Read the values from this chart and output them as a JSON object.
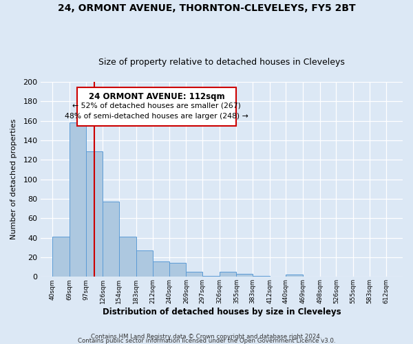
{
  "title_line1": "24, ORMONT AVENUE, THORNTON-CLEVELEYS, FY5 2BT",
  "title_line2": "Size of property relative to detached houses in Cleveleys",
  "xlabel": "Distribution of detached houses by size in Cleveleys",
  "ylabel": "Number of detached properties",
  "bar_values": [
    41,
    158,
    129,
    77,
    41,
    27,
    16,
    14,
    5,
    1,
    5,
    3,
    1,
    0,
    2
  ],
  "tick_values": [
    40,
    69,
    97,
    126,
    154,
    183,
    212,
    240,
    269,
    297,
    326,
    355,
    383,
    412,
    440,
    469,
    498,
    526,
    555,
    583,
    612
  ],
  "bar_color": "#adc8e0",
  "bar_edge_color": "#5b9bd5",
  "bg_color": "#dce8f5",
  "grid_color": "#ffffff",
  "vline_x": 112,
  "vline_color": "#cc0000",
  "annotation_title": "24 ORMONT AVENUE: 112sqm",
  "annotation_line1": "← 52% of detached houses are smaller (267)",
  "annotation_line2": "48% of semi-detached houses are larger (248) →",
  "ylim": [
    0,
    200
  ],
  "yticks": [
    0,
    20,
    40,
    60,
    80,
    100,
    120,
    140,
    160,
    180,
    200
  ],
  "footer_line1": "Contains HM Land Registry data © Crown copyright and database right 2024.",
  "footer_line2": "Contains public sector information licensed under the Open Government Licence v3.0.",
  "ann_box_facecolor": "#ffffff"
}
